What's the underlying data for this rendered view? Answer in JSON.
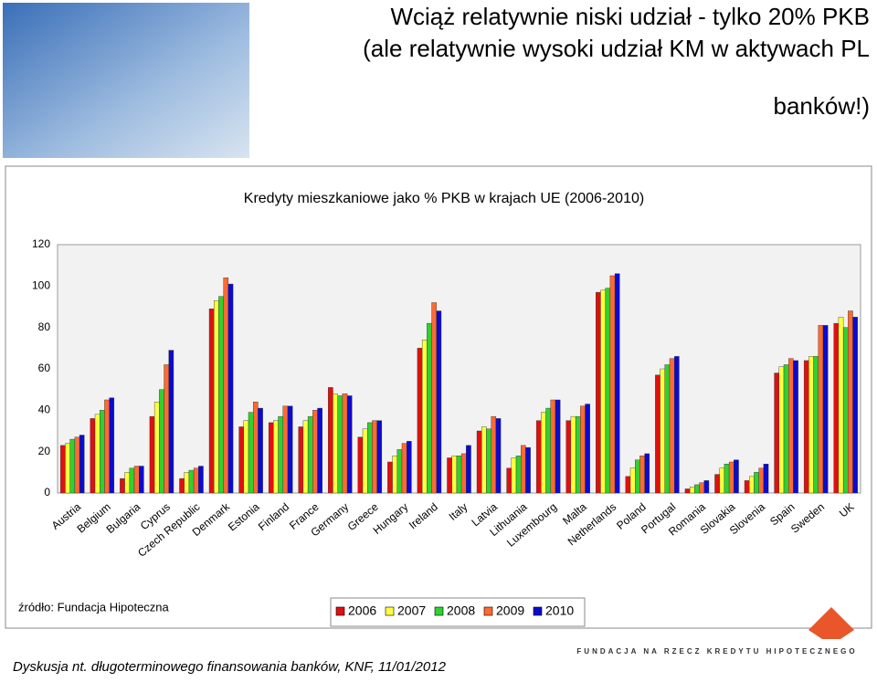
{
  "slide": {
    "title_lines": [
      "Wciąż relatywnie niski udział  - tylko 20% PKB",
      "(ale relatywnie wysoki udział KM w aktywach PL",
      "banków!)"
    ],
    "source": "źródło: Fundacja Hipoteczna",
    "logo": "FUNDACJA NA RZECZ KREDYTU HIPOTECZNEGO",
    "footer": "Dyskusja nt. długoterminowego finansowania banków, KNF, 11/01/2012"
  },
  "chart_data": {
    "type": "bar",
    "title": "Kredyty mieszkaniowe jako % PKB w krajach UE (2006-2010)",
    "categories": [
      "Austria",
      "Belgium",
      "Bulgaria",
      "Cyprus",
      "Czech Republic",
      "Denmark",
      "Estonia",
      "Finland",
      "France",
      "Germany",
      "Greece",
      "Hungary",
      "Ireland",
      "Italy",
      "Latvia",
      "Lithuania",
      "Luxembourg",
      "Malta",
      "Netherlands",
      "Poland",
      "Portugal",
      "Romania",
      "Slovakia",
      "Slovenia",
      "Spain",
      "Sweden",
      "UK"
    ],
    "series": [
      {
        "name": "2006",
        "color": "#e01010",
        "values": [
          23,
          36,
          7,
          37,
          7,
          89,
          32,
          34,
          32,
          51,
          27,
          15,
          70,
          17,
          30,
          12,
          35,
          35,
          97,
          8,
          57,
          2,
          9,
          6,
          58,
          64,
          82
        ]
      },
      {
        "name": "2007",
        "color": "#ffff40",
        "values": [
          24,
          38,
          10,
          44,
          10,
          93,
          35,
          35,
          35,
          48,
          31,
          18,
          74,
          18,
          32,
          17,
          39,
          37,
          98,
          12,
          60,
          3,
          12,
          8,
          61,
          66,
          85
        ]
      },
      {
        "name": "2008",
        "color": "#30d030",
        "values": [
          26,
          40,
          12,
          50,
          11,
          95,
          39,
          37,
          37,
          47,
          34,
          21,
          82,
          18,
          31,
          18,
          41,
          37,
          99,
          16,
          62,
          4,
          14,
          10,
          62,
          66,
          80
        ]
      },
      {
        "name": "2009",
        "color": "#ff6a30",
        "values": [
          27,
          45,
          13,
          62,
          12,
          104,
          44,
          42,
          40,
          48,
          35,
          24,
          92,
          19,
          37,
          23,
          45,
          42,
          105,
          18,
          65,
          5,
          15,
          12,
          65,
          81,
          88
        ]
      },
      {
        "name": "2010",
        "color": "#0a0ad0",
        "values": [
          28,
          46,
          13,
          69,
          13,
          101,
          41,
          42,
          41,
          47,
          35,
          25,
          88,
          23,
          36,
          22,
          45,
          43,
          106,
          19,
          66,
          6,
          16,
          14,
          64,
          81,
          85
        ]
      }
    ],
    "ylim": [
      0,
      120
    ],
    "yticks": [
      0,
      20,
      40,
      60,
      80,
      100,
      120
    ],
    "grid": false
  }
}
